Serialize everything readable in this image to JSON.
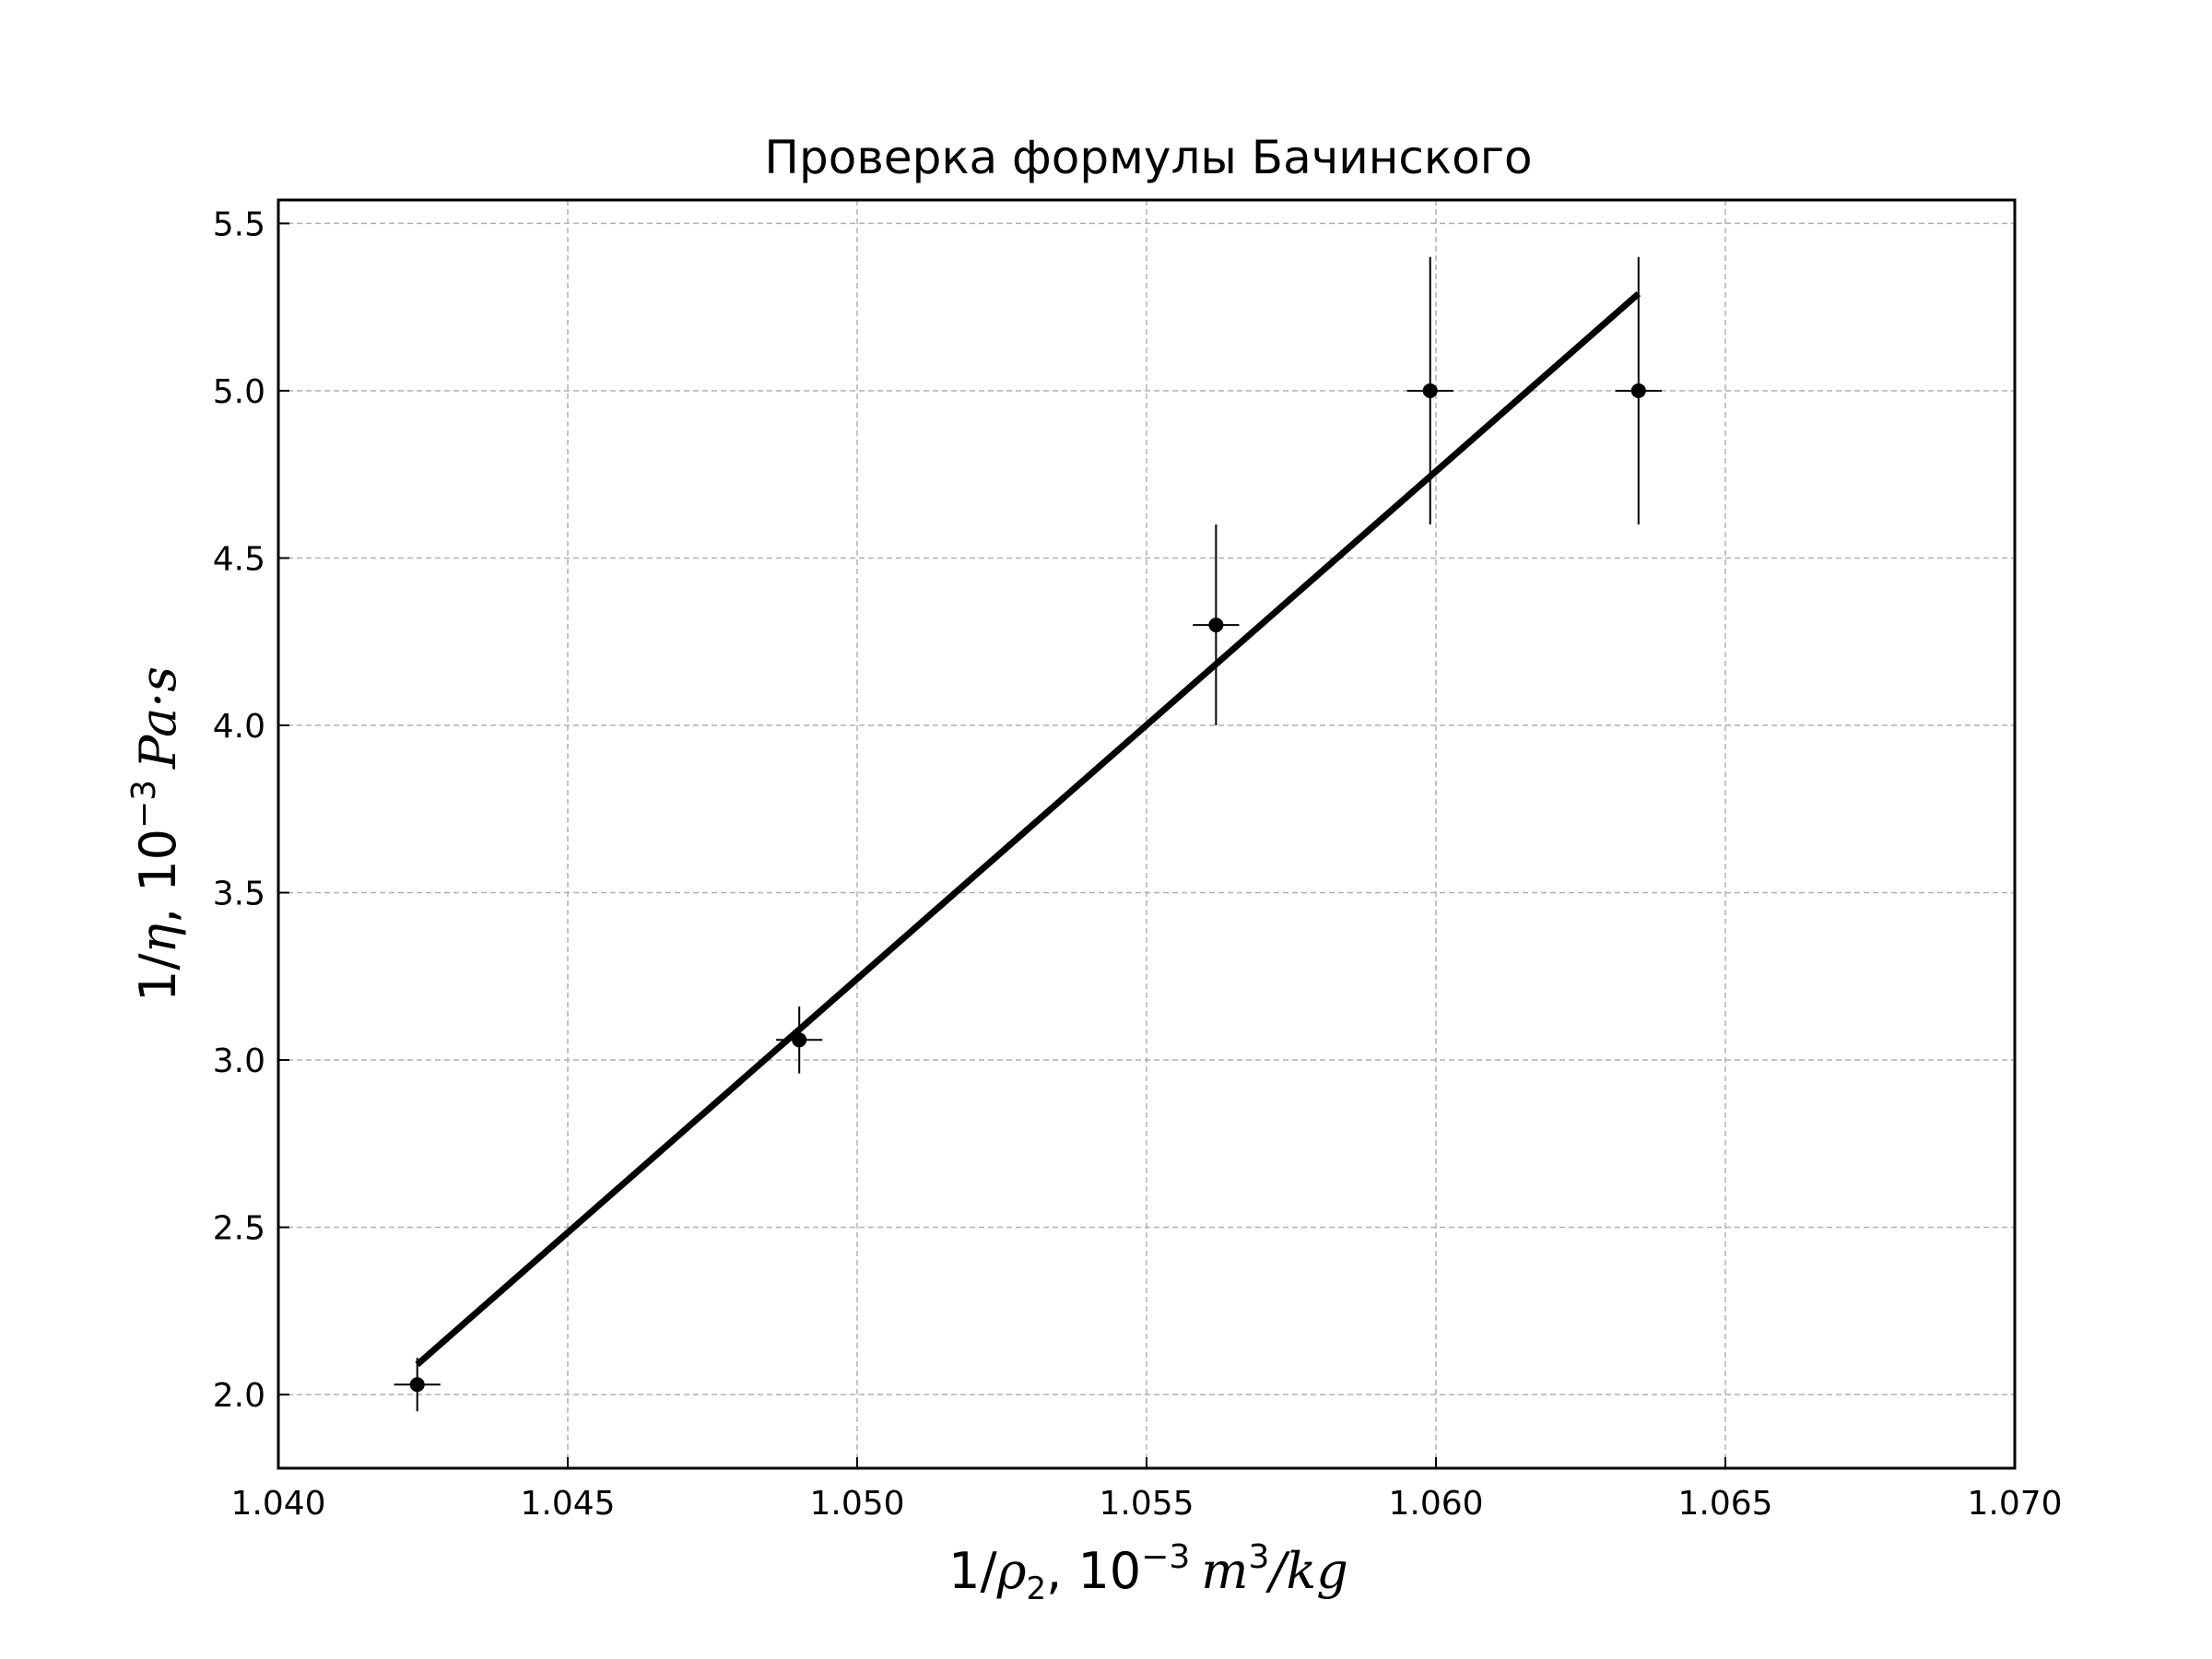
{
  "chart_data": {
    "type": "scatter",
    "title": "Проверка формулы Бачинского",
    "xlabel": {
      "pre": "1/",
      "rho": "ρ",
      "sub": "2",
      "mid": ", 10",
      "exp": "−3",
      "unit_m": "m",
      "unit_exp": "3",
      "unit_rest": "/kg"
    },
    "ylabel": {
      "pre": "1/",
      "eta": "η",
      "mid": ", 10",
      "exp": "−3",
      "unit": "Pa·s"
    },
    "xlim": [
      1.04,
      1.07
    ],
    "ylim": [
      1.78,
      5.57
    ],
    "xticks": [
      "1.040",
      "1.045",
      "1.050",
      "1.055",
      "1.060",
      "1.065",
      "1.070"
    ],
    "yticks": [
      "2.0",
      "2.5",
      "3.0",
      "3.5",
      "4.0",
      "4.5",
      "5.0",
      "5.5"
    ],
    "grid": true,
    "series": [
      {
        "type": "errorbar",
        "color": "#000000",
        "points": [
          {
            "x": 1.0424,
            "y": 2.03,
            "xerr": 0.0004,
            "yerr": 0.08
          },
          {
            "x": 1.049,
            "y": 3.06,
            "xerr": 0.0004,
            "yerr": 0.1
          },
          {
            "x": 1.0562,
            "y": 4.3,
            "xerr": 0.0004,
            "yerr": 0.3
          },
          {
            "x": 1.0599,
            "y": 5.0,
            "xerr": 0.0004,
            "yerr": 0.4
          },
          {
            "x": 1.0635,
            "y": 5.0,
            "xerr": 0.0004,
            "yerr": 0.4
          }
        ]
      },
      {
        "type": "line",
        "color": "#000000",
        "x": [
          1.0424,
          1.0635
        ],
        "y": [
          2.09,
          5.29
        ]
      }
    ]
  }
}
